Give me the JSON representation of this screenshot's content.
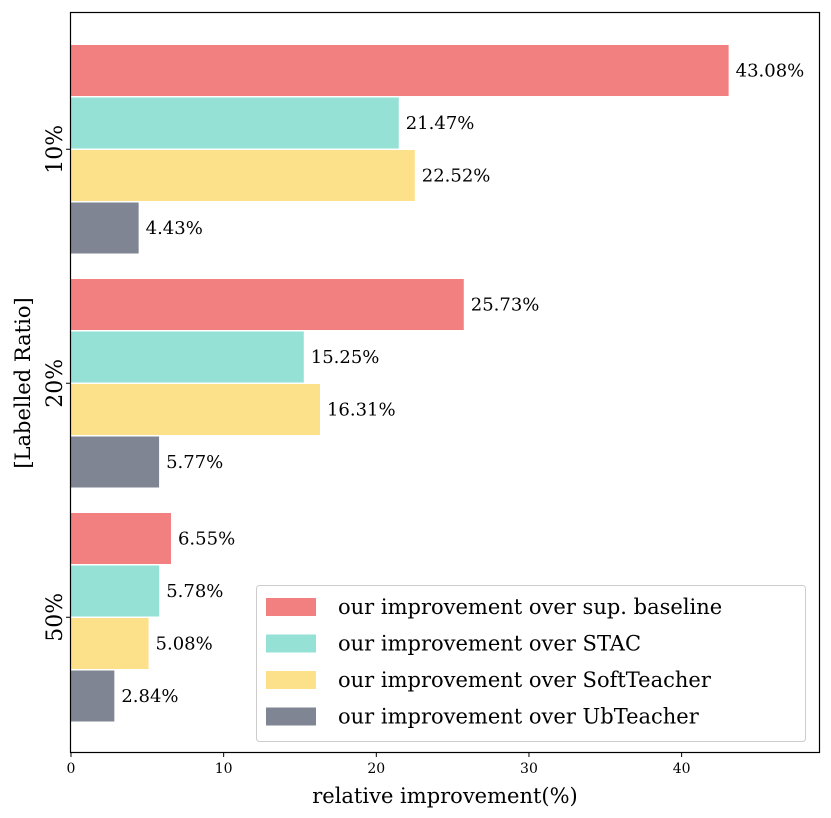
{
  "chart_data": {
    "type": "bar",
    "orientation": "horizontal",
    "categories": [
      "10%",
      "20%",
      "50%"
    ],
    "series": [
      {
        "name": "our improvement over sup. baseline",
        "values": [
          43.08,
          25.73,
          6.55
        ],
        "color": "#f28080"
      },
      {
        "name": "our improvement over STAC",
        "values": [
          21.47,
          15.25,
          5.78
        ],
        "color": "#95e1d6"
      },
      {
        "name": "our improvement over SoftTeacher",
        "values": [
          22.52,
          16.31,
          5.08
        ],
        "color": "#fce08a"
      },
      {
        "name": "our improvement over UbTeacher",
        "values": [
          4.43,
          5.77,
          2.84
        ],
        "color": "#7f8592"
      }
    ],
    "data_labels": [
      [
        "43.08%",
        "21.47%",
        "22.52%",
        "4.43%"
      ],
      [
        "25.73%",
        "15.25%",
        "16.31%",
        "5.77%"
      ],
      [
        "6.55%",
        "5.78%",
        "5.08%",
        "2.84%"
      ]
    ],
    "xlabel": "relative improvement(%)",
    "ylabel": "[Labelled Ratio]",
    "xlim": [
      0,
      49
    ],
    "xticks": [
      0,
      10,
      20,
      30,
      40
    ],
    "grid": false,
    "legend_position": "bottom-right"
  }
}
